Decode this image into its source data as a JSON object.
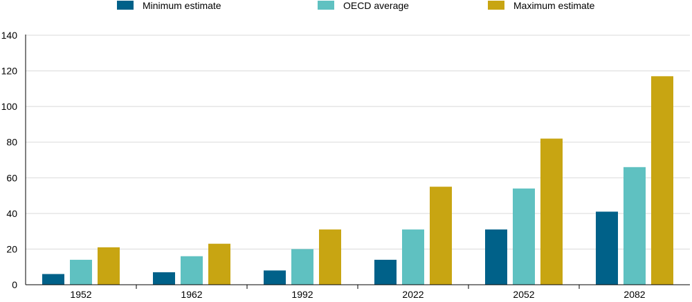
{
  "chart_data": {
    "type": "bar",
    "categories": [
      "1952",
      "1962",
      "1992",
      "2022",
      "2052",
      "2082"
    ],
    "series": [
      {
        "name": "Minimum estimate",
        "color": "#006189",
        "values": [
          6,
          7,
          8,
          14,
          31,
          41
        ]
      },
      {
        "name": "OECD average",
        "color": "#5fc1c1",
        "values": [
          14,
          16,
          20,
          31,
          54,
          66
        ]
      },
      {
        "name": "Maximum estimate",
        "color": "#c8a512",
        "values": [
          21,
          23,
          31,
          55,
          82,
          117
        ]
      }
    ],
    "ylim": [
      0,
      140
    ],
    "yticks": [
      0,
      20,
      40,
      60,
      80,
      100,
      120,
      140
    ],
    "grid": true,
    "legend_position": "top"
  }
}
